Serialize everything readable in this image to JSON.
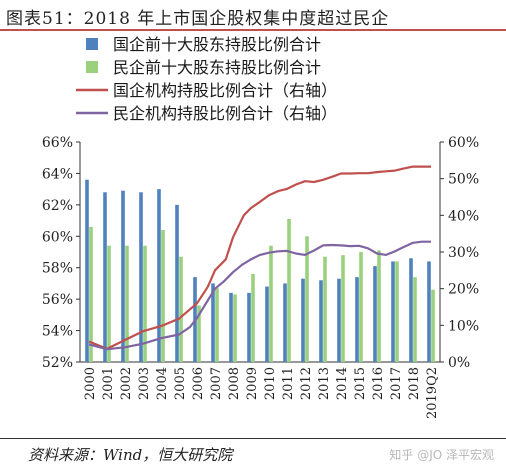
{
  "figure": {
    "title": "图表51：2018 年上市国企股权集中度超过民企",
    "source": "资料来源：Wind，恒大研究院",
    "watermark": "知乎 @JO 泽平宏观"
  },
  "chart_data": {
    "type": "bar",
    "categories": [
      "2000",
      "2001",
      "2002",
      "2003",
      "2004",
      "2005",
      "2006",
      "2007",
      "2008",
      "2009",
      "2010",
      "2011",
      "2012",
      "2013",
      "2014",
      "2015",
      "2016",
      "2017",
      "2018",
      "2019Q2"
    ],
    "left_axis": {
      "ylim": [
        52,
        66
      ],
      "ticks": [
        "52%",
        "54%",
        "56%",
        "58%",
        "60%",
        "62%",
        "64%",
        "66%"
      ]
    },
    "right_axis": {
      "ylim": [
        0,
        60
      ],
      "ticks": [
        "0%",
        "10%",
        "20%",
        "30%",
        "40%",
        "50%",
        "60%"
      ]
    },
    "series": [
      {
        "name": "国企前十大股东持股比例合计",
        "kind": "bar",
        "axis": "left",
        "color": "#4f81bd",
        "values": [
          63.6,
          62.8,
          62.9,
          62.8,
          63.0,
          62.0,
          57.4,
          57.0,
          56.4,
          56.4,
          56.8,
          57.0,
          57.3,
          57.2,
          57.3,
          57.4,
          58.1,
          58.4,
          58.6,
          58.4
        ]
      },
      {
        "name": "民企前十大股东持股比例合计",
        "kind": "bar",
        "axis": "left",
        "color": "#9bd17e",
        "values": [
          60.6,
          59.4,
          59.4,
          59.4,
          60.4,
          58.7,
          55.6,
          56.7,
          56.3,
          57.6,
          59.4,
          61.1,
          60.0,
          58.7,
          58.8,
          59.0,
          59.1,
          58.4,
          57.4,
          56.6
        ]
      },
      {
        "name": "国企机构持股比例合计（右轴）",
        "kind": "line",
        "axis": "right",
        "color": "#c0504d",
        "x": [
          0,
          1,
          2,
          3,
          4,
          5,
          6,
          6.6,
          7,
          7.6,
          8,
          8.6,
          9,
          9.5,
          10,
          10.5,
          11,
          11.5,
          12,
          12.5,
          13,
          13.5,
          14,
          14.5,
          15,
          15.5,
          16,
          16.5,
          17,
          17.5,
          18,
          18.5,
          19
        ],
        "values": [
          5.6,
          3.6,
          6.0,
          8.4,
          9.8,
          11.8,
          16.0,
          20.5,
          25.0,
          28.0,
          34.0,
          40.0,
          42.0,
          43.7,
          45.5,
          46.6,
          47.2,
          48.4,
          49.3,
          49.1,
          49.7,
          50.5,
          51.4,
          51.4,
          51.5,
          51.5,
          51.8,
          52.0,
          52.2,
          52.8,
          53.3,
          53.3,
          53.3
        ]
      },
      {
        "name": "民企机构持股比例合计（右轴）",
        "kind": "line",
        "axis": "right",
        "color": "#8064a2",
        "x": [
          0,
          1,
          2,
          3,
          4,
          5,
          5.6,
          6,
          6.5,
          7,
          7.5,
          8,
          8.5,
          9,
          9.5,
          10,
          10.5,
          11,
          11.5,
          12,
          12.5,
          13,
          13.5,
          14,
          14.5,
          15,
          15.5,
          16,
          16.5,
          17,
          17.5,
          18,
          18.5,
          19
        ],
        "values": [
          4.8,
          3.5,
          4.0,
          5.0,
          6.5,
          7.5,
          9.5,
          12.0,
          16.0,
          20.0,
          22.0,
          24.5,
          26.5,
          28.0,
          29.2,
          29.8,
          30.2,
          30.3,
          29.6,
          29.2,
          30.4,
          31.8,
          31.9,
          31.8,
          31.6,
          31.7,
          31.0,
          29.6,
          29.2,
          30.2,
          31.4,
          32.5,
          32.8,
          32.8
        ]
      }
    ],
    "legend_position": "top-left",
    "grid": false
  }
}
